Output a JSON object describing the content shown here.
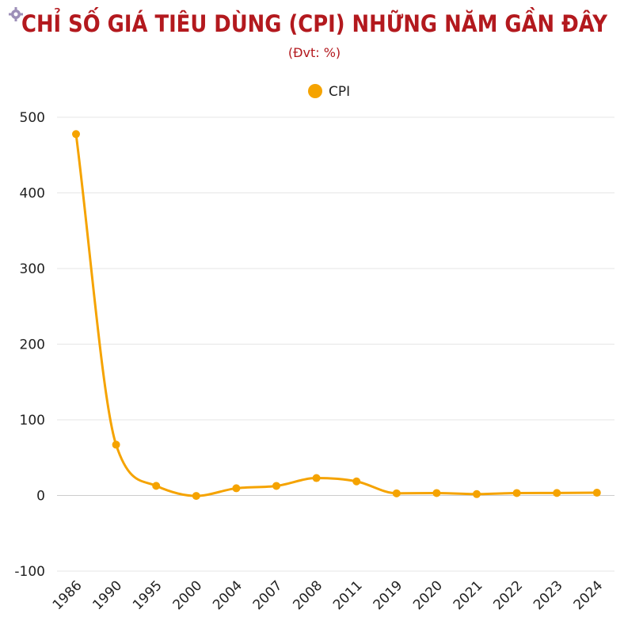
{
  "colors": {
    "title": "#b3191e",
    "subtitle": "#b3191e",
    "series": "#f5a300",
    "grid": "#e6e6e6",
    "zero_line": "#cccccc",
    "text": "#222222"
  },
  "header": {
    "title": "CHỈ SỐ GIÁ TIÊU DÙNG (CPI) NHỮNG NĂM GẦN ĐÂY",
    "subtitle": "(Đvt: %)",
    "corner_icon": "gear-icon"
  },
  "chart_data": {
    "type": "line",
    "title": "CHỈ SỐ GIÁ TIÊU DÙNG (CPI) NHỮNG NĂM GẦN ĐÂY",
    "subtitle": "(Đvt: %)",
    "xlabel": "",
    "ylabel": "",
    "categories": [
      "1986",
      "1990",
      "1995",
      "2000",
      "2004",
      "2007",
      "2008",
      "2011",
      "2019",
      "2020",
      "2021",
      "2022",
      "2023",
      "2024"
    ],
    "series": [
      {
        "name": "CPI",
        "color": "#f5a300",
        "values": [
          477.7,
          67.1,
          12.7,
          -0.6,
          9.5,
          12.6,
          23.0,
          18.6,
          2.8,
          3.2,
          1.8,
          3.2,
          3.3,
          3.6
        ]
      }
    ],
    "ylim": [
      -100,
      500
    ],
    "yticks": [
      -100,
      0,
      100,
      200,
      300,
      400,
      500
    ],
    "grid": true,
    "legend": "top-center",
    "x_tick_rotation": "diagonal"
  }
}
